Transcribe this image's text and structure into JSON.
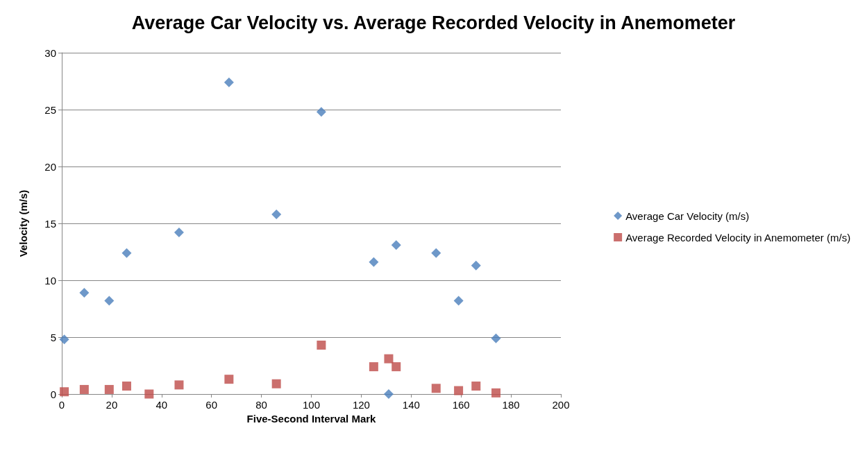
{
  "chart_data": {
    "type": "scatter",
    "title": "Average Car Velocity vs. Average Recorded Velocity in Anemometer",
    "xlabel": "Five-Second Interval Mark",
    "ylabel": "Velocity (m/s)",
    "xlim": [
      0,
      200
    ],
    "xticks": [
      0,
      20,
      40,
      60,
      80,
      100,
      120,
      140,
      160,
      180,
      200
    ],
    "ylim": [
      0,
      30
    ],
    "yticks": [
      0,
      5,
      10,
      15,
      20,
      25,
      30
    ],
    "grid": "y",
    "legend": "right",
    "series": [
      {
        "name": "Average Car Velocity (m/s)",
        "color": "#4a7ebb",
        "marker": "diamond",
        "x": [
          1,
          9,
          19,
          26,
          47,
          67,
          86,
          104,
          125,
          131,
          134,
          150,
          159,
          166,
          174
        ],
        "values": [
          4.8,
          8.9,
          8.2,
          12.4,
          14.2,
          27.4,
          15.8,
          24.8,
          11.6,
          0,
          13.1,
          12.4,
          8.2,
          11.3,
          4.9
        ]
      },
      {
        "name": "Average Recorded Velocity in Anemometer (m/s)",
        "color": "#be4b48",
        "marker": "square",
        "x": [
          1,
          9,
          19,
          26,
          35,
          47,
          67,
          86,
          104,
          125,
          131,
          134,
          150,
          159,
          166,
          174
        ],
        "values": [
          0.2,
          0.4,
          0.4,
          0.7,
          0,
          0.8,
          1.3,
          0.9,
          4.3,
          2.4,
          3.1,
          2.4,
          0.5,
          0.3,
          0.7,
          0.1
        ]
      }
    ]
  }
}
